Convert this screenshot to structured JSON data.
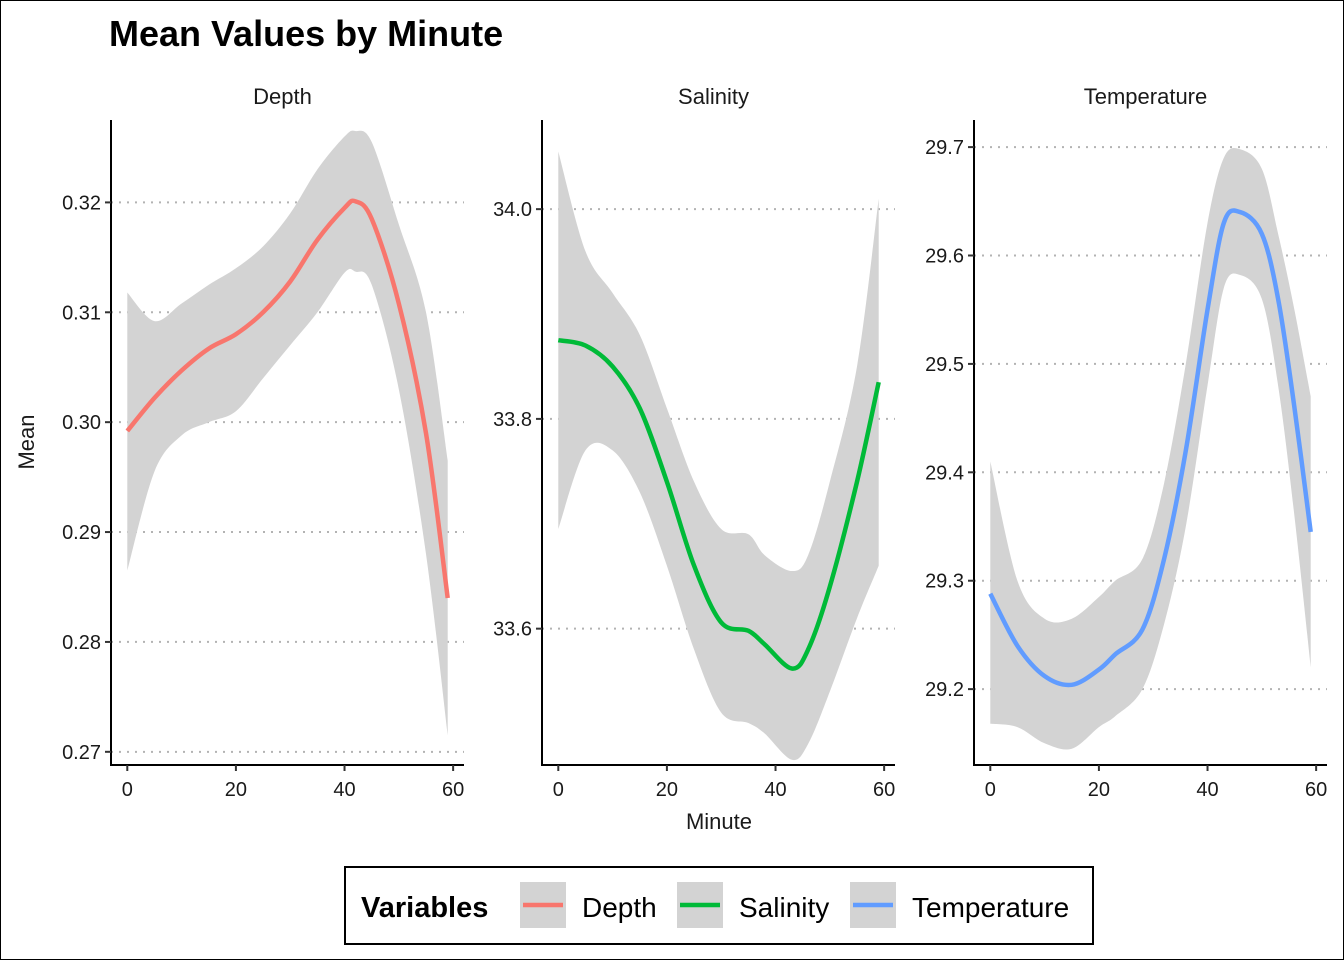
{
  "chart_data": {
    "type": "line",
    "title": "Mean Values by Minute",
    "xlabel": "Minute",
    "ylabel": "Mean",
    "legend": {
      "title": "Variables",
      "placement": "bottom",
      "entries": [
        "Depth",
        "Salinity",
        "Temperature"
      ]
    },
    "grid": "horizontal dotted",
    "panels": [
      {
        "name": "Depth",
        "color": "#F8766D",
        "xlim": [
          -3,
          62
        ],
        "ylim": [
          0.2688,
          0.3275
        ],
        "x_ticks": [
          0,
          20,
          40,
          60
        ],
        "y_ticks": [
          0.27,
          0.28,
          0.29,
          0.3,
          0.31,
          0.32
        ],
        "y_tick_labels": [
          "0.27",
          "0.28",
          "0.29",
          "0.30",
          "0.31",
          "0.32"
        ],
        "x": [
          0,
          5,
          10,
          15,
          20,
          25,
          30,
          35,
          40,
          42,
          45,
          50,
          55,
          59
        ],
        "y": [
          0.2992,
          0.3022,
          0.3047,
          0.3067,
          0.308,
          0.31,
          0.3128,
          0.3166,
          0.3195,
          0.3201,
          0.3185,
          0.3108,
          0.299,
          0.284
        ],
        "ci_lower": [
          0.2865,
          0.2955,
          0.2988,
          0.3,
          0.301,
          0.304,
          0.307,
          0.31,
          0.3136,
          0.3137,
          0.3125,
          0.303,
          0.288,
          0.2715
        ],
        "ci_upper": [
          0.3118,
          0.3092,
          0.3108,
          0.3125,
          0.314,
          0.316,
          0.319,
          0.323,
          0.326,
          0.3265,
          0.3255,
          0.318,
          0.31,
          0.2965
        ]
      },
      {
        "name": "Salinity",
        "color": "#00BA38",
        "xlim": [
          -3,
          62
        ],
        "ylim": [
          33.47,
          34.085
        ],
        "x_ticks": [
          0,
          20,
          40,
          60
        ],
        "y_ticks": [
          33.6,
          33.8,
          34.0
        ],
        "y_tick_labels": [
          "33.6",
          "33.8",
          "34.0"
        ],
        "x": [
          0,
          5,
          10,
          15,
          20,
          25,
          30,
          35,
          38,
          43,
          46,
          50,
          55,
          59
        ],
        "y": [
          33.875,
          33.87,
          33.85,
          33.81,
          33.74,
          33.66,
          33.606,
          33.598,
          33.585,
          33.562,
          33.58,
          33.64,
          33.74,
          33.835
        ],
        "ci_lower": [
          33.695,
          33.77,
          33.77,
          33.73,
          33.66,
          33.58,
          33.52,
          33.51,
          33.5,
          33.475,
          33.49,
          33.54,
          33.61,
          33.66
        ],
        "ci_upper": [
          34.055,
          33.96,
          33.92,
          33.88,
          33.81,
          33.74,
          33.695,
          33.69,
          33.67,
          33.655,
          33.67,
          33.74,
          33.85,
          34.01
        ]
      },
      {
        "name": "Temperature",
        "color": "#619CFF",
        "xlim": [
          -3,
          62
        ],
        "ylim": [
          29.13,
          29.725
        ],
        "x_ticks": [
          0,
          20,
          40,
          60
        ],
        "y_ticks": [
          29.2,
          29.3,
          29.4,
          29.5,
          29.6,
          29.7
        ],
        "y_tick_labels": [
          "29.2",
          "29.3",
          "29.4",
          "29.5",
          "29.6",
          "29.7"
        ],
        "x": [
          0,
          5,
          10,
          15,
          20,
          23,
          28,
          32,
          36,
          40,
          43,
          46,
          50,
          53,
          56,
          59
        ],
        "y": [
          29.288,
          29.24,
          29.212,
          29.204,
          29.218,
          29.232,
          29.255,
          29.32,
          29.42,
          29.55,
          29.63,
          29.64,
          29.62,
          29.56,
          29.46,
          29.345
        ],
        "ci_lower": [
          29.168,
          29.165,
          29.15,
          29.145,
          29.165,
          29.175,
          29.2,
          29.26,
          29.35,
          29.48,
          29.57,
          29.582,
          29.56,
          29.48,
          29.36,
          29.22
        ],
        "ci_upper": [
          29.41,
          29.3,
          29.265,
          29.265,
          29.285,
          29.3,
          29.32,
          29.39,
          29.5,
          29.63,
          29.69,
          29.698,
          29.68,
          29.62,
          29.55,
          29.47
        ]
      }
    ]
  }
}
